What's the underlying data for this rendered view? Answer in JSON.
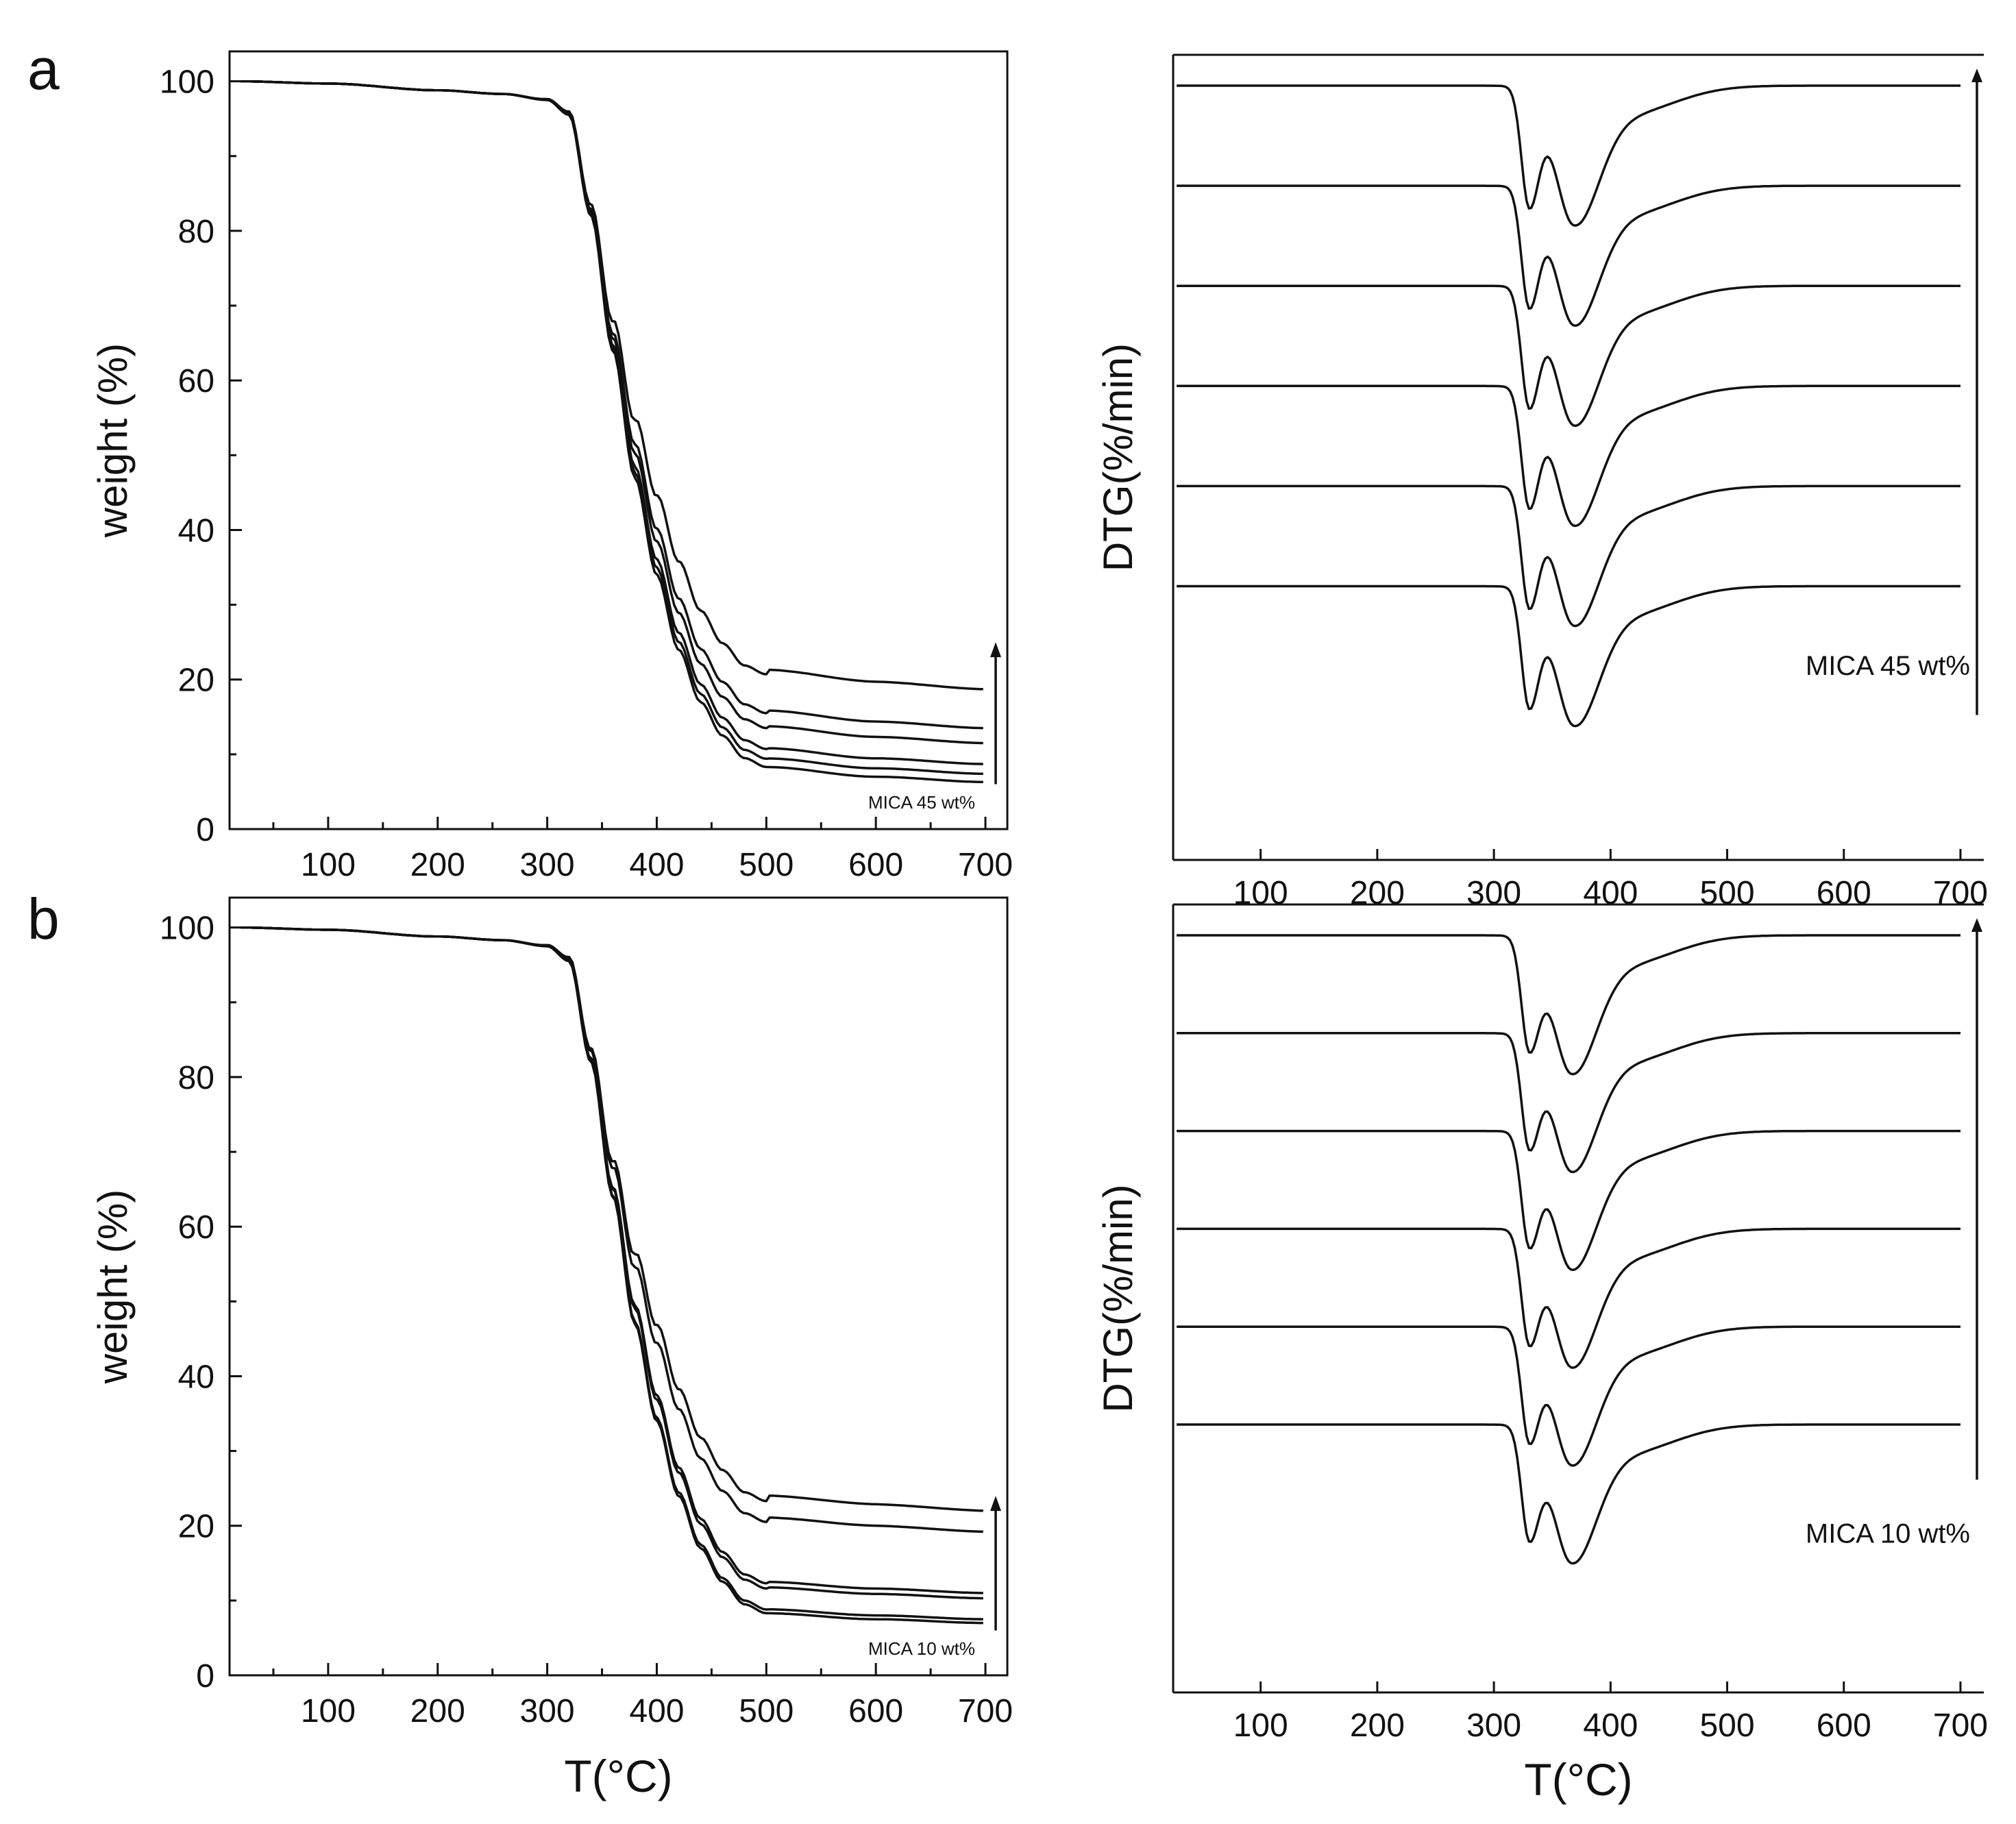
{
  "panel_labels": {
    "a": "a",
    "b": "b"
  },
  "chart_data": [
    {
      "id": "tga-a",
      "type": "line",
      "panel": "a",
      "title": "",
      "xlabel": "",
      "ylabel": "weight (%)",
      "xlim": [
        10,
        720
      ],
      "ylim": [
        0,
        104
      ],
      "xticks": [
        100,
        200,
        300,
        400,
        500,
        600,
        700
      ],
      "yticks": [
        0,
        20,
        40,
        60,
        80,
        100
      ],
      "annotation": "MICA 45 wt%",
      "arrow": {
        "x": 700,
        "y_from": 6,
        "y_to": 25
      },
      "series": [
        {
          "name": "curve 1",
          "residue": 6.3
        },
        {
          "name": "curve 2",
          "residue": 7.4
        },
        {
          "name": "curve 3",
          "residue": 8.7
        },
        {
          "name": "curve 4",
          "residue": 11.5
        },
        {
          "name": "curve 5",
          "residue": 13.5
        },
        {
          "name": "curve 6",
          "residue": 18.7
        }
      ],
      "profile": {
        "x": [
          20,
          100,
          200,
          260,
          300,
          320,
          340,
          360,
          380,
          400,
          420,
          440,
          460,
          480,
          500,
          600,
          700
        ],
        "base": [
          100,
          99.7,
          98.8,
          98.3,
          97.5,
          95.5,
          82,
          64,
          47,
          34,
          24,
          17,
          12.5,
          9.5,
          8.3,
          7,
          6.3
        ]
      }
    },
    {
      "id": "dtg-a",
      "type": "line",
      "panel": "a",
      "title": "",
      "xlabel": "",
      "ylabel": "DTG(%/min)",
      "xlim": [
        25,
        720
      ],
      "xticks": [
        100,
        200,
        300,
        400,
        500,
        600,
        700
      ],
      "annotation": "MICA 45 wt%",
      "series": [
        {
          "name": "curve 1",
          "baseline_offset": 0
        },
        {
          "name": "curve 2",
          "baseline_offset": 1
        },
        {
          "name": "curve 3",
          "baseline_offset": 2
        },
        {
          "name": "curve 4",
          "baseline_offset": 3
        },
        {
          "name": "curve 5",
          "baseline_offset": 4
        },
        {
          "name": "curve 6",
          "baseline_offset": 5
        }
      ],
      "peaks": [
        {
          "x": 330,
          "depth": 1.4,
          "width": 9
        },
        {
          "x": 368,
          "depth": 1.55,
          "width": 22
        },
        {
          "x": 410,
          "depth": 0.35,
          "width": 45
        }
      ]
    },
    {
      "id": "tga-b",
      "type": "line",
      "panel": "b",
      "title": "",
      "xlabel": "T(°C)",
      "ylabel": "weight (%)",
      "xlim": [
        10,
        720
      ],
      "ylim": [
        0,
        104
      ],
      "xticks": [
        100,
        200,
        300,
        400,
        500,
        600,
        700
      ],
      "yticks": [
        0,
        20,
        40,
        60,
        80,
        100
      ],
      "annotation": "MICA 10 wt%",
      "arrow": {
        "x": 700,
        "y_from": 6,
        "y_to": 24
      },
      "series": [
        {
          "name": "curve 1",
          "residue": 7.0
        },
        {
          "name": "curve 2",
          "residue": 7.5
        },
        {
          "name": "curve 3",
          "residue": 10.3
        },
        {
          "name": "curve 4",
          "residue": 11.0
        },
        {
          "name": "curve 5",
          "residue": 19.2
        },
        {
          "name": "curve 6",
          "residue": 22.0
        }
      ],
      "profile": {
        "x": [
          20,
          100,
          200,
          260,
          300,
          320,
          340,
          360,
          380,
          400,
          420,
          440,
          460,
          480,
          500,
          600,
          700
        ],
        "base": [
          100,
          99.7,
          98.8,
          98.3,
          97.5,
          95.5,
          82,
          64,
          47,
          34,
          24,
          17,
          12.5,
          9.5,
          8.3,
          7.5,
          7.0
        ]
      }
    },
    {
      "id": "dtg-b",
      "type": "line",
      "panel": "b",
      "title": "",
      "xlabel": "T(°C)",
      "ylabel": "DTG(%/min)",
      "xlim": [
        25,
        720
      ],
      "xticks": [
        100,
        200,
        300,
        400,
        500,
        600,
        700
      ],
      "annotation": "MICA 10 wt%",
      "series": [
        {
          "name": "curve 1",
          "baseline_offset": 0
        },
        {
          "name": "curve 2",
          "baseline_offset": 1
        },
        {
          "name": "curve 3",
          "baseline_offset": 2
        },
        {
          "name": "curve 4",
          "baseline_offset": 3
        },
        {
          "name": "curve 5",
          "baseline_offset": 4
        },
        {
          "name": "curve 6",
          "baseline_offset": 5
        }
      ],
      "peaks": [
        {
          "x": 330,
          "depth": 1.3,
          "width": 9
        },
        {
          "x": 366,
          "depth": 1.55,
          "width": 22
        },
        {
          "x": 410,
          "depth": 0.35,
          "width": 45
        }
      ]
    }
  ]
}
